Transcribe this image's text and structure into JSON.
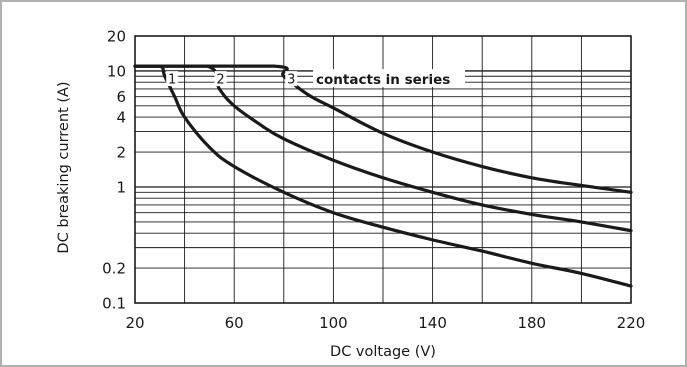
{
  "chart_data": {
    "type": "line",
    "xlabel": "DC voltage (V)",
    "ylabel": "DC breaking current (A)",
    "xlim": [
      20,
      220
    ],
    "ylim": [
      0.1,
      20
    ],
    "y_scale": "log",
    "x_ticks": [
      20,
      60,
      100,
      140,
      180,
      220
    ],
    "x_tick_labels": [
      "20",
      "60",
      "100",
      "140",
      "180",
      "220"
    ],
    "y_ticks": [
      0.1,
      0.2,
      1,
      2,
      4,
      6,
      10,
      20
    ],
    "y_tick_labels": [
      "0.1",
      "0.2",
      "1",
      "2",
      "4",
      "6",
      "10",
      "20"
    ],
    "grid": true,
    "annotation": "contacts in series",
    "series": [
      {
        "name": "1",
        "x": [
          20,
          30,
          32,
          36,
          40,
          50,
          60,
          80,
          100,
          120,
          140,
          160,
          180,
          200,
          220
        ],
        "y": [
          11,
          11,
          9,
          6,
          4,
          2.2,
          1.5,
          0.9,
          0.6,
          0.45,
          0.35,
          0.28,
          0.22,
          0.18,
          0.14
        ]
      },
      {
        "name": "2",
        "x": [
          20,
          49,
          54,
          60,
          70,
          80,
          100,
          120,
          140,
          160,
          180,
          200,
          220
        ],
        "y": [
          11,
          11,
          7,
          5,
          3.5,
          2.6,
          1.7,
          1.2,
          0.9,
          0.7,
          0.58,
          0.5,
          0.42
        ]
      },
      {
        "name": "3",
        "x": [
          20,
          76,
          80,
          90,
          100,
          120,
          140,
          160,
          180,
          200,
          220
        ],
        "y": [
          11,
          11,
          9,
          6.2,
          4.8,
          2.9,
          2,
          1.5,
          1.2,
          1.03,
          0.9
        ]
      }
    ]
  }
}
